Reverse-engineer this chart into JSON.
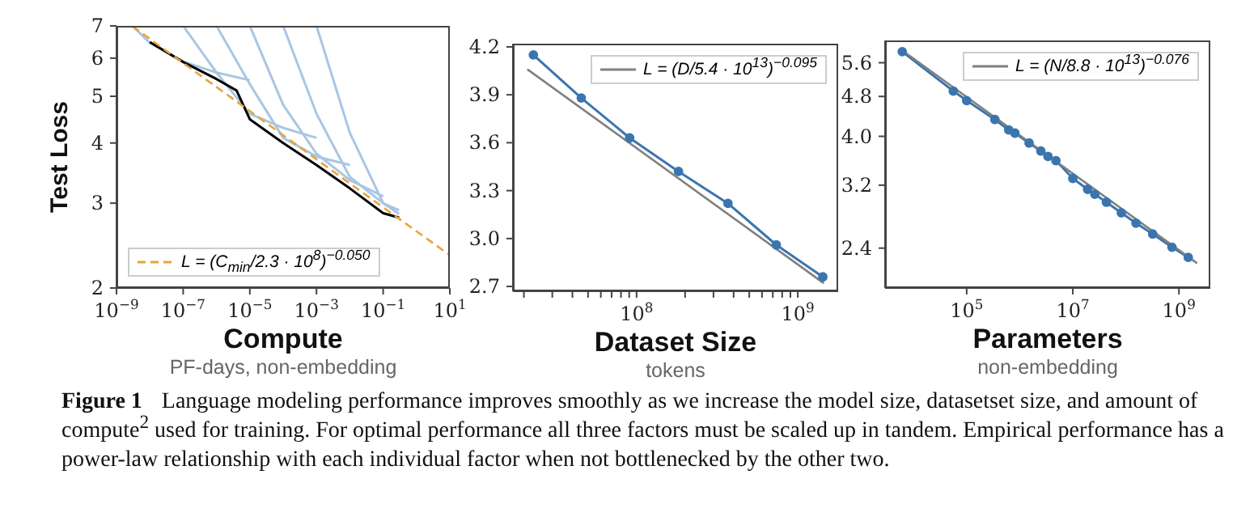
{
  "chart_data": [
    {
      "type": "line",
      "xlabel": "Compute",
      "subtitle": "PF-days, non-embedding",
      "ylabel": "Test Loss",
      "log": "xy",
      "legend": "bottom left",
      "marker": "none",
      "xlim": [
        1e-09,
        10
      ],
      "xticks": [
        {
          "value": 1e-09,
          "label": "10$^{−9}$"
        },
        {
          "value": 1e-07,
          "label": "10$^{−7}$"
        },
        {
          "value": 1e-05,
          "label": "10$^{−5}$"
        },
        {
          "value": 0.001,
          "label": "10$^{−3}$"
        },
        {
          "value": 0.1,
          "label": "10$^{−1}$"
        },
        {
          "value": 10,
          "label": "10$^{1}$"
        }
      ],
      "ylim": [
        2,
        7
      ],
      "yticks": [
        2,
        3,
        4,
        5,
        6,
        7
      ],
      "annotations": [
        "Figure 1",
        "Language modeling performance improves smoothly as we increase the model size, datasetset size, and amount of compute$^{2}$ used for training. For optimal performance all three factors must be scaled up in tandem. Empirical performance has a power-law relationship with each individual factor when not bottlenecked by the other two."
      ],
      "series": [
        {
          "color": "#a9c6e2",
          "x": [
            3e-09,
            1e-08,
            1e-07,
            1e-06,
            1e-05
          ],
          "values": [
            7,
            6.45,
            5.9,
            5.6,
            5.4
          ]
        },
        {
          "color": "#a9c6e2",
          "x": [
            1e-07,
            1e-06,
            1e-05,
            0.0001,
            0.001
          ],
          "values": [
            7,
            5.6,
            4.6,
            4.3,
            4.1
          ]
        },
        {
          "color": "#a9c6e2",
          "x": [
            1e-06,
            1e-05,
            0.0001,
            0.001,
            0.01
          ],
          "values": [
            7,
            5.3,
            4.1,
            3.75,
            3.6
          ]
        },
        {
          "color": "#a9c6e2",
          "x": [
            1e-05,
            0.0001,
            0.001,
            0.01,
            0.1
          ],
          "values": [
            7,
            4.8,
            3.8,
            3.35,
            3.1
          ]
        },
        {
          "color": "#a9c6e2",
          "x": [
            0.0001,
            0.001,
            0.01,
            0.1,
            0.3
          ],
          "values": [
            7,
            4.6,
            3.4,
            3.0,
            2.9
          ]
        },
        {
          "color": "#a9c6e2",
          "x": [
            0.001,
            0.01,
            0.1,
            0.3
          ],
          "values": [
            7,
            4.2,
            3.0,
            2.85
          ]
        },
        {
          "color": "#000000",
          "x": [
            1e-08,
            1e-07,
            1e-06,
            4e-06,
            1e-05,
            0.0001,
            0.001,
            0.01,
            0.1,
            0.3
          ],
          "values": [
            6.48,
            5.89,
            5.43,
            5.14,
            4.48,
            4.0,
            3.6,
            3.22,
            2.86,
            2.8
          ]
        },
        {
          "name": "L = (C$_{min}$/2.3 · 10$^{8}$)$^{−0.050}$",
          "color": "#e8a33d",
          "line_style": "dashed",
          "x": [
            3e-09,
            1e-07,
            1e-05,
            0.001,
            0.1,
            10
          ],
          "values": [
            6.99,
            5.86,
            4.66,
            3.7,
            2.94,
            2.34
          ]
        }
      ]
    },
    {
      "type": "line",
      "xlabel": "Dataset Size",
      "subtitle": "tokens",
      "log": "x",
      "legend": "top right",
      "xlim": [
        17100000.0,
        1780000000.0
      ],
      "xticks": [
        {
          "value": 20000000.0,
          "label": null
        },
        {
          "value": 30000000.0,
          "label": null
        },
        {
          "value": 40000000.0,
          "label": null
        },
        {
          "value": 50000000.0,
          "label": null
        },
        {
          "value": 60000000.0,
          "label": null
        },
        {
          "value": 70000000.0,
          "label": null
        },
        {
          "value": 80000000.0,
          "label": null
        },
        {
          "value": 90000000.0,
          "label": null
        },
        {
          "value": 100000000.0,
          "label": "10$^{8}$"
        },
        {
          "value": 200000000.0,
          "label": null
        },
        {
          "value": 300000000.0,
          "label": null
        },
        {
          "value": 400000000.0,
          "label": null
        },
        {
          "value": 500000000.0,
          "label": null
        },
        {
          "value": 600000000.0,
          "label": null
        },
        {
          "value": 700000000.0,
          "label": null
        },
        {
          "value": 800000000.0,
          "label": null
        },
        {
          "value": 900000000.0,
          "label": null
        },
        {
          "value": 1000000000.0,
          "label": "10$^{9}$"
        }
      ],
      "ylim": [
        2.67,
        4.22
      ],
      "yticks": [
        {
          "value": 2.7,
          "label": "2.7"
        },
        {
          "value": 3,
          "label": "3.0"
        },
        {
          "value": 3.3,
          "label": "3.3"
        },
        {
          "value": 3.6,
          "label": "3.6"
        },
        {
          "value": 3.9,
          "label": "3.9"
        },
        {
          "value": 4.2,
          "label": "4.2"
        }
      ],
      "series": [
        {
          "color": "#3b75af",
          "marker": "circle",
          "x": [
            22900000.0,
            45400000.0,
            90600000.0,
            182000000.0,
            369000000.0,
            736000000.0,
            1430000000.0
          ],
          "values": [
            4.15,
            3.88,
            3.63,
            3.42,
            3.22,
            2.96,
            2.76
          ]
        },
        {
          "name": "L = (D/5.4 · 10$^{13}$)$^{−0.095}$",
          "color": "#808080",
          "marker": "none",
          "x": [
            21000000.0,
            1450000000.0
          ],
          "values": [
            4.06,
            2.72
          ]
        }
      ]
    },
    {
      "type": "line",
      "xlabel": "Parameters",
      "subtitle": "non-embedding",
      "log": "xy",
      "legend": "top right",
      "xlim": [
        2900.0,
        3900000000.0
      ],
      "xticks": [
        {
          "value": 100000.0,
          "label": "10$^{5}$"
        },
        {
          "value": 10000000.0,
          "label": "10$^{7}$"
        },
        {
          "value": 1000000000.0,
          "label": "10$^{9}$"
        }
      ],
      "ylim": [
        2.0,
        6.2
      ],
      "yticks": [
        {
          "value": 2.4,
          "label": "2.4"
        },
        {
          "value": 3.2,
          "label": "3.2"
        },
        {
          "value": 4,
          "label": "4.0"
        },
        {
          "value": 4.8,
          "label": "4.8"
        },
        {
          "value": 5.6,
          "label": "5.6"
        }
      ],
      "series": [
        {
          "color": "#3b75af",
          "marker": "circle",
          "x": [
            6100.0,
            56000.0,
            100000.0,
            340000.0,
            620000.0,
            810000.0,
            1500000.0,
            2500000.0,
            3400000.0,
            4800000.0,
            10000000.0,
            19000000.0,
            26000000.0,
            43000000.0,
            82000000.0,
            155000000.0,
            320000000.0,
            740000000.0,
            1500000000.0
          ],
          "values": [
            5.89,
            4.92,
            4.71,
            4.32,
            4.12,
            4.06,
            3.88,
            3.74,
            3.65,
            3.58,
            3.3,
            3.14,
            3.07,
            2.96,
            2.82,
            2.69,
            2.56,
            2.41,
            2.3
          ]
        },
        {
          "name": "L = (N/8.8 · 10$^{13}$)$^{−0.076}$",
          "color": "#808080",
          "marker": "none",
          "x": [
            6000.0,
            2200000000.0
          ],
          "values": [
            5.93,
            2.24
          ]
        }
      ]
    }
  ]
}
